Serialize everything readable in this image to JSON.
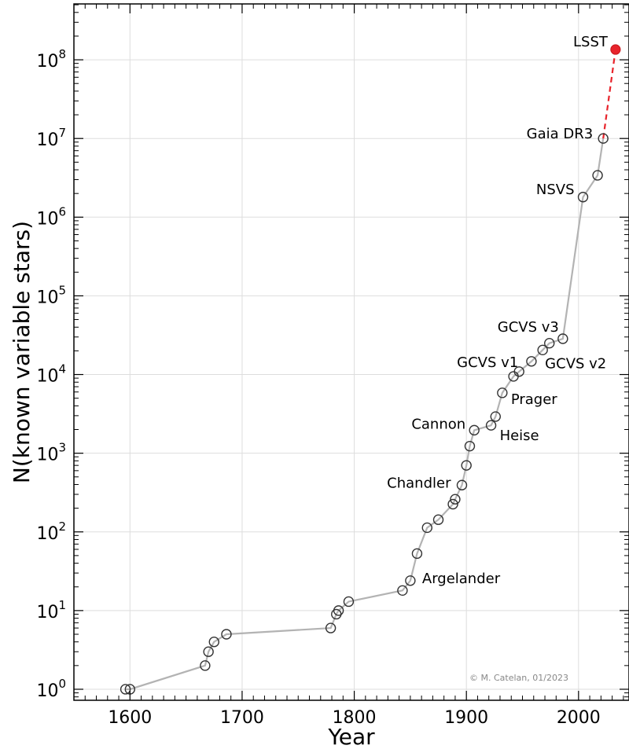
{
  "chart_data": {
    "type": "scatter",
    "title": "",
    "xlabel": "Year",
    "ylabel": "N(known variable stars)",
    "xlim": [
      1550,
      2045
    ],
    "ylim_log10": [
      -0.14,
      8.71
    ],
    "yscale": "log",
    "grid": true,
    "x_ticks": [
      1600,
      1700,
      1800,
      1900,
      2000
    ],
    "y_ticks": [
      {
        "base": "10",
        "exp": "0",
        "value": 1
      },
      {
        "base": "10",
        "exp": "1",
        "value": 10
      },
      {
        "base": "10",
        "exp": "2",
        "value": 100
      },
      {
        "base": "10",
        "exp": "3",
        "value": 1000
      },
      {
        "base": "10",
        "exp": "4",
        "value": 10000
      },
      {
        "base": "10",
        "exp": "5",
        "value": 100000
      },
      {
        "base": "10",
        "exp": "6",
        "value": 1000000
      },
      {
        "base": "10",
        "exp": "7",
        "value": 10000000
      },
      {
        "base": "10",
        "exp": "8",
        "value": 100000000
      }
    ],
    "series": [
      {
        "style": "gray line with open circle markers",
        "color": "#b3b3b3",
        "marker_edge": "#333333",
        "points": [
          {
            "x": 1596,
            "y": 1
          },
          {
            "x": 1600,
            "y": 1
          },
          {
            "x": 1667,
            "y": 2
          },
          {
            "x": 1670,
            "y": 3
          },
          {
            "x": 1675,
            "y": 4
          },
          {
            "x": 1686,
            "y": 5
          },
          {
            "x": 1779,
            "y": 6
          },
          {
            "x": 1784,
            "y": 9
          },
          {
            "x": 1786,
            "y": 10
          },
          {
            "x": 1795,
            "y": 13
          },
          {
            "x": 1843,
            "y": 18
          },
          {
            "x": 1850,
            "y": 24
          },
          {
            "x": 1856,
            "y": 53
          },
          {
            "x": 1865,
            "y": 113
          },
          {
            "x": 1875,
            "y": 143
          },
          {
            "x": 1888,
            "y": 225
          },
          {
            "x": 1890,
            "y": 260
          },
          {
            "x": 1896,
            "y": 393
          },
          {
            "x": 1900,
            "y": 700
          },
          {
            "x": 1903,
            "y": 1230
          },
          {
            "x": 1907,
            "y": 1960
          },
          {
            "x": 1922,
            "y": 2260
          },
          {
            "x": 1926,
            "y": 2920
          },
          {
            "x": 1932,
            "y": 5850
          },
          {
            "x": 1942,
            "y": 9470
          },
          {
            "x": 1947,
            "y": 10900
          },
          {
            "x": 1958,
            "y": 14700
          },
          {
            "x": 1968,
            "y": 20500
          },
          {
            "x": 1974,
            "y": 25000
          },
          {
            "x": 1986,
            "y": 28500
          },
          {
            "x": 2004,
            "y": 1800000
          },
          {
            "x": 2017,
            "y": 3400000
          },
          {
            "x": 2022,
            "y": 10000000
          }
        ]
      },
      {
        "style": "red dashed projection",
        "color": "#e8232b",
        "points": [
          {
            "x": 2022,
            "y": 10000000
          },
          {
            "x": 2033,
            "y": 135000000
          }
        ]
      }
    ],
    "highlight_point": {
      "x": 2033,
      "y": 135000000,
      "color": "#e8232b"
    },
    "annotations": [
      {
        "text": "LSST",
        "x": 2033,
        "y": 135000000
      },
      {
        "text": "Gaia DR3",
        "x": 2022,
        "y": 10000000
      },
      {
        "text": "NSVS",
        "x": 2004,
        "y": 1800000
      },
      {
        "text": "GCVS v3",
        "x": 1986,
        "y": 28500
      },
      {
        "text": "GCVS v1",
        "x": 1947,
        "y": 10900
      },
      {
        "text": "GCVS v2",
        "x": 1968,
        "y": 20500
      },
      {
        "text": "Prager",
        "x": 1932,
        "y": 5850
      },
      {
        "text": "Cannon",
        "x": 1907,
        "y": 1960
      },
      {
        "text": "Heise",
        "x": 1922,
        "y": 2260
      },
      {
        "text": "Chandler",
        "x": 1896,
        "y": 393
      },
      {
        "text": "Argelander",
        "x": 1850,
        "y": 24
      }
    ],
    "credit": "© M. Catelan, 01/2023"
  }
}
